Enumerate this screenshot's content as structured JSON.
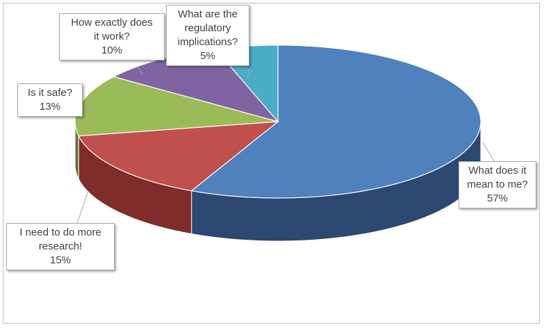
{
  "chart_data": {
    "type": "pie",
    "title": "",
    "three_d": true,
    "slices": [
      {
        "label": "What does it mean to me?",
        "value": 57,
        "display": "57%",
        "color": "#4f81bd",
        "side_color": "#2c4770"
      },
      {
        "label": "I need to do more research!",
        "value": 15,
        "display": "15%",
        "color": "#c0504d",
        "side_color": "#7f2c2a"
      },
      {
        "label": "Is it safe?",
        "value": 13,
        "display": "13%",
        "color": "#9bbb59",
        "side_color": "#5f7a32"
      },
      {
        "label": "How exactly does it work?",
        "value": 10,
        "display": "10%",
        "color": "#8064a2",
        "side_color": "#4d3a66"
      },
      {
        "label": "What are the regulatory implications?",
        "value": 5,
        "display": "5%",
        "color": "#4bacc6",
        "side_color": "#2a6d80"
      }
    ],
    "callouts": [
      {
        "lines": [
          "What does it",
          "mean to me?"
        ],
        "pct": "57%"
      },
      {
        "lines": [
          "I need to do more",
          "research!"
        ],
        "pct": "15%"
      },
      {
        "lines": [
          "Is it safe?"
        ],
        "pct": "13%"
      },
      {
        "lines": [
          "How exactly does",
          "it work?"
        ],
        "pct": "10%"
      },
      {
        "lines": [
          "What are the",
          "regulatory",
          "implications?"
        ],
        "pct": "5%"
      }
    ],
    "legend": "none",
    "data_labels": "callout"
  }
}
